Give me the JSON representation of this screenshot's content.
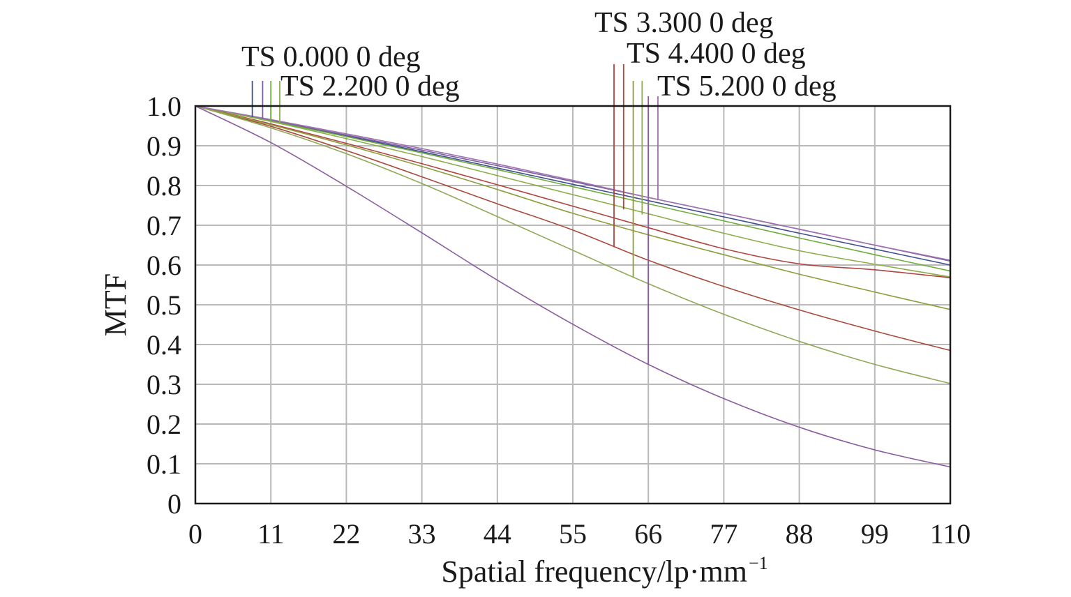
{
  "chart_data": {
    "type": "line",
    "xlabel": "Spatial frequency/lp·mm",
    "xlabel_sup": "−1",
    "ylabel": "MTF",
    "xlim": [
      0,
      110
    ],
    "ylim": [
      0,
      1.0
    ],
    "x_ticks": [
      "0",
      "11",
      "22",
      "33",
      "44",
      "55",
      "66",
      "77",
      "88",
      "99",
      "110"
    ],
    "y_ticks": [
      "0",
      "0.1",
      "0.2",
      "0.3",
      "0.4",
      "0.5",
      "0.6",
      "0.7",
      "0.8",
      "0.9",
      "1.0"
    ],
    "grid": true,
    "legend_labels": [
      "TS 0.000 0 deg",
      "TS 2.200 0 deg",
      "TS 3.300 0 deg",
      "TS 4.400 0 deg",
      "TS 5.200 0 deg"
    ],
    "series": [
      {
        "name": "TS 0.000 0 deg",
        "field_deg": 0.0,
        "type": "tangential",
        "color": "#3f4f8f",
        "x": [
          0,
          11,
          22,
          33,
          44,
          55,
          66,
          77,
          88,
          99,
          110
        ],
        "y": [
          1.0,
          0.963,
          0.925,
          0.885,
          0.844,
          0.803,
          0.762,
          0.721,
          0.68,
          0.64,
          0.6
        ],
        "marker": {
          "x": 8.3,
          "y": 0.972
        }
      },
      {
        "name": "TS 0.000 0 deg",
        "field_deg": 0.0,
        "type": "sagittal",
        "color": "#7a5ea3",
        "x": [
          0,
          11,
          22,
          33,
          44,
          55,
          66,
          77,
          88,
          99,
          110
        ],
        "y": [
          1.0,
          0.964,
          0.927,
          0.889,
          0.85,
          0.81,
          0.77,
          0.73,
          0.69,
          0.65,
          0.61
        ],
        "marker": {
          "x": 9.8,
          "y": 0.968
        }
      },
      {
        "name": "TS 2.200 0 deg",
        "field_deg": 2.2,
        "type": "tangential",
        "color": "#6fae3b",
        "x": [
          0,
          11,
          22,
          33,
          44,
          55,
          66,
          77,
          88,
          99,
          110
        ],
        "y": [
          1.0,
          0.962,
          0.923,
          0.882,
          0.84,
          0.797,
          0.754,
          0.711,
          0.668,
          0.626,
          0.585
        ],
        "marker": {
          "x": 11.0,
          "y": 0.963
        }
      },
      {
        "name": "TS 2.200 0 deg",
        "field_deg": 2.2,
        "type": "sagittal",
        "color": "#8aae4a",
        "x": [
          0,
          11,
          22,
          33,
          44,
          55,
          66,
          77,
          88,
          99,
          110
        ],
        "y": [
          1.0,
          0.961,
          0.918,
          0.873,
          0.825,
          0.777,
          0.729,
          0.68,
          0.636,
          0.602,
          0.57
        ],
        "marker": {
          "x": 12.3,
          "y": 0.958
        }
      },
      {
        "name": "TS 3.300 0 deg",
        "field_deg": 3.3,
        "type": "tangential",
        "color": "#b0453f",
        "x": [
          0,
          11,
          22,
          33,
          44,
          55,
          66,
          77,
          88,
          99,
          110
        ],
        "y": [
          1.0,
          0.955,
          0.906,
          0.855,
          0.802,
          0.748,
          0.694,
          0.641,
          0.603,
          0.588,
          0.568
        ],
        "marker": {
          "x": 61.0,
          "y": 0.645
        }
      },
      {
        "name": "TS 3.300 0 deg",
        "field_deg": 3.3,
        "type": "sagittal",
        "color": "#a84a3c",
        "x": [
          0,
          11,
          22,
          33,
          44,
          55,
          66,
          77,
          88,
          99,
          110
        ],
        "y": [
          1.0,
          0.949,
          0.888,
          0.822,
          0.754,
          0.688,
          0.612,
          0.546,
          0.487,
          0.434,
          0.385
        ],
        "marker": {
          "x": 62.4,
          "y": 0.74
        }
      },
      {
        "name": "TS 4.400 0 deg",
        "field_deg": 4.4,
        "type": "tangential",
        "color": "#8c9e3c",
        "x": [
          0,
          11,
          22,
          33,
          44,
          55,
          66,
          77,
          88,
          99,
          110
        ],
        "y": [
          1.0,
          0.953,
          0.902,
          0.848,
          0.79,
          0.73,
          0.676,
          0.626,
          0.577,
          0.532,
          0.488
        ],
        "marker": {
          "x": 63.8,
          "y": 0.57
        }
      },
      {
        "name": "TS 4.400 0 deg",
        "field_deg": 4.4,
        "type": "sagittal",
        "color": "#91a858",
        "x": [
          0,
          11,
          22,
          33,
          44,
          55,
          66,
          77,
          88,
          99,
          110
        ],
        "y": [
          1.0,
          0.945,
          0.88,
          0.805,
          0.722,
          0.637,
          0.553,
          0.476,
          0.408,
          0.35,
          0.302
        ],
        "marker": {
          "x": 65.1,
          "y": 0.727
        }
      },
      {
        "name": "TS 5.200 0 deg",
        "field_deg": 5.2,
        "type": "tangential",
        "color": "#8a5ca0",
        "x": [
          0,
          11,
          22,
          33,
          44,
          55,
          66,
          77,
          88,
          99,
          110
        ],
        "y": [
          1.0,
          0.908,
          0.798,
          0.681,
          0.562,
          0.451,
          0.35,
          0.264,
          0.192,
          0.135,
          0.092
        ],
        "marker": {
          "x": 66.0,
          "y": 0.35
        }
      },
      {
        "name": "TS 5.200 0 deg",
        "field_deg": 5.2,
        "type": "sagittal",
        "color": "#a070b0",
        "x": [
          0,
          11,
          22,
          33,
          44,
          55,
          66,
          77,
          88,
          99,
          110
        ],
        "y": [
          1.0,
          0.966,
          0.93,
          0.893,
          0.854,
          0.813,
          0.77,
          0.73,
          0.69,
          0.65,
          0.612
        ],
        "marker": {
          "x": 67.4,
          "y": 0.763
        }
      }
    ]
  }
}
